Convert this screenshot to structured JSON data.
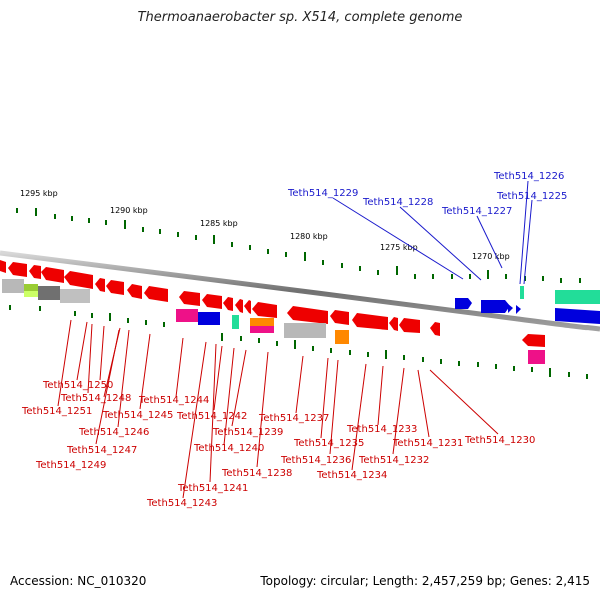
{
  "title": "Thermoanaerobacter sp. X514, complete genome",
  "footer": {
    "accession": "Accession: NC_010320",
    "summary": "Topology: circular; Length: 2,457,259 bp; Genes: 2,415"
  },
  "scale_labels": [
    "1295 kbp",
    "1290 kbp",
    "1285 kbp",
    "1280 kbp",
    "1275 kbp",
    "1270 kbp"
  ],
  "top_genes": [
    "Teth514_1229",
    "Teth514_1228",
    "Teth514_1227",
    "Teth514_1226",
    "Teth514_1225"
  ],
  "bottom_genes": [
    "Teth514_1250",
    "Teth514_1248",
    "Teth514_1251",
    "Teth514_1246",
    "Teth514_1247",
    "Teth514_1249",
    "Teth514_1245",
    "Teth514_1244",
    "Teth514_1242",
    "Teth514_1240",
    "Teth514_1241",
    "Teth514_1243",
    "Teth514_1239",
    "Teth514_1238",
    "Teth514_1237",
    "Teth514_1235",
    "Teth514_1236",
    "Teth514_1234",
    "Teth514_1233",
    "Teth514_1232",
    "Teth514_1231",
    "Teth514_1230"
  ],
  "colors": {
    "gene_red": "#ee0000",
    "gene_blue": "#0000dd",
    "gene_grey": "#b8b8b8",
    "gene_teal": "#22dd99",
    "gene_magenta": "#ee1188",
    "gene_orange": "#ff8800",
    "tick_green": "#006600",
    "label_blue": "#1a1acc",
    "label_red": "#cc0000"
  }
}
